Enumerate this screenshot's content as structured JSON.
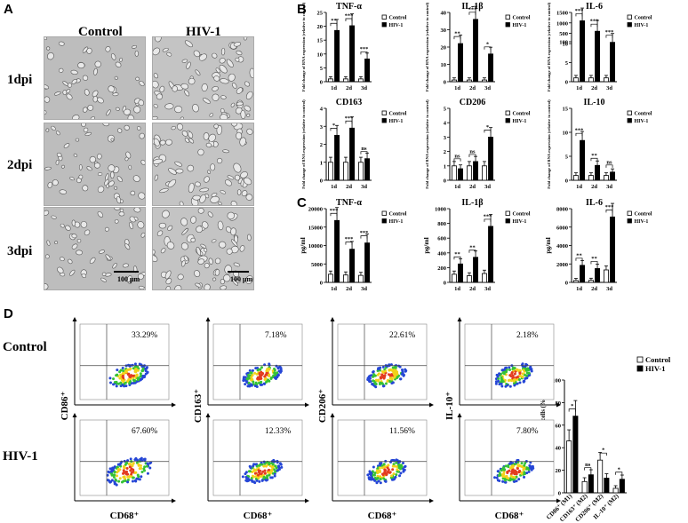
{
  "panel_labels": {
    "a": "A",
    "b": "B",
    "c": "C",
    "d": "D"
  },
  "panel_a": {
    "col_headers": [
      "Control",
      "HIV-1"
    ],
    "row_labels": [
      "1dpi",
      "2dpi",
      "3dpi"
    ],
    "scale_label": "100 μm"
  },
  "legend": {
    "control": "Control",
    "hiv": "HIV-1"
  },
  "panel_b_ylabel": "Fold change of RNA expression (relative to control)",
  "panel_c_ylabel": "pg/ml",
  "chart_data": [
    {
      "type": "bar",
      "title": "TNF-α",
      "panel": "B",
      "categories": [
        "1d",
        "2d",
        "3d"
      ],
      "ylabel": "Fold change of RNA expression (relative to control)",
      "ylim": [
        0,
        25
      ],
      "yticks": [
        0,
        5,
        10,
        15,
        20,
        25
      ],
      "series": [
        {
          "name": "Control",
          "values": [
            1,
            1,
            1
          ]
        },
        {
          "name": "HIV-1",
          "values": [
            18.5,
            20.2,
            8.2
          ]
        }
      ],
      "sig": [
        "**",
        "***",
        "***"
      ]
    },
    {
      "type": "bar",
      "title": "IL-1β",
      "panel": "B",
      "categories": [
        "1d",
        "2d",
        "3d"
      ],
      "ylabel": "Fold change of RNA expression (relative to control)",
      "ylim": [
        0,
        40
      ],
      "yticks": [
        0,
        10,
        20,
        30,
        40
      ],
      "series": [
        {
          "name": "Control",
          "values": [
            1,
            1,
            1
          ]
        },
        {
          "name": "HIV-1",
          "values": [
            22,
            36,
            16
          ]
        }
      ],
      "sig": [
        "**",
        "***",
        "*"
      ]
    },
    {
      "type": "bar",
      "title": "IL-6",
      "panel": "B",
      "categories": [
        "1d",
        "2d",
        "3d"
      ],
      "ylabel": "Fold change of RNA expression (relative to control)",
      "ylim": [
        0,
        1500
      ],
      "yticks": [
        0,
        5,
        10,
        100,
        500,
        1000,
        1500
      ],
      "series": [
        {
          "name": "Control",
          "values": [
            1,
            1,
            1
          ]
        },
        {
          "name": "HIV-1",
          "values": [
            1100,
            600,
            70
          ]
        }
      ],
      "sig": [
        "***",
        "***",
        "***"
      ]
    },
    {
      "type": "bar",
      "title": "CD163",
      "panel": "B",
      "categories": [
        "1d",
        "2d",
        "3d"
      ],
      "ylabel": "Fold change of RNA expression (relative to control)",
      "ylim": [
        0,
        4
      ],
      "yticks": [
        0,
        1,
        2,
        3,
        4
      ],
      "series": [
        {
          "name": "Control",
          "values": [
            1.0,
            1.0,
            1.0
          ]
        },
        {
          "name": "HIV-1",
          "values": [
            2.5,
            2.9,
            1.2
          ]
        }
      ],
      "sig": [
        "*",
        "***",
        "ns"
      ]
    },
    {
      "type": "bar",
      "title": "CD206",
      "panel": "B",
      "categories": [
        "1d",
        "2d",
        "3d"
      ],
      "ylabel": "Fold change of RNA expression (relative to control)",
      "ylim": [
        0,
        5
      ],
      "yticks": [
        0,
        1,
        2,
        3,
        4,
        5
      ],
      "series": [
        {
          "name": "Control",
          "values": [
            1.0,
            1.0,
            1.0
          ]
        },
        {
          "name": "HIV-1",
          "values": [
            0.8,
            1.3,
            3.0
          ]
        }
      ],
      "sig": [
        "ns",
        "ns",
        "*"
      ]
    },
    {
      "type": "bar",
      "title": "IL-10",
      "panel": "B",
      "categories": [
        "1d",
        "2d",
        "3d"
      ],
      "ylabel": "Fold change of RNA expression (relative to control)",
      "ylim": [
        0,
        15
      ],
      "yticks": [
        0,
        5,
        10,
        15
      ],
      "series": [
        {
          "name": "Control",
          "values": [
            1.0,
            1.0,
            1.0
          ]
        },
        {
          "name": "HIV-1",
          "values": [
            8.3,
            3.1,
            1.7
          ]
        }
      ],
      "sig": [
        "***",
        "**",
        "ns"
      ]
    },
    {
      "type": "bar",
      "title": "TNF-α",
      "panel": "C",
      "categories": [
        "1d",
        "2d",
        "3d"
      ],
      "ylabel": "pg/ml",
      "ylim": [
        0,
        20000
      ],
      "yticks": [
        0,
        5000,
        10000,
        15000,
        20000
      ],
      "series": [
        {
          "name": "Control",
          "values": [
            2200,
            2000,
            1900
          ]
        },
        {
          "name": "HIV-1",
          "values": [
            16800,
            9000,
            10700
          ]
        }
      ],
      "sig": [
        "***",
        "***",
        "***"
      ]
    },
    {
      "type": "bar",
      "title": "IL-1β",
      "panel": "C",
      "categories": [
        "1d",
        "2d",
        "3d"
      ],
      "ylabel": "pg/ml",
      "ylim": [
        0,
        1000
      ],
      "yticks": [
        0,
        200,
        400,
        600,
        800,
        1000
      ],
      "series": [
        {
          "name": "Control",
          "values": [
            110,
            90,
            120
          ]
        },
        {
          "name": "HIV-1",
          "values": [
            250,
            340,
            760
          ]
        }
      ],
      "sig": [
        "**",
        "**",
        "***"
      ]
    },
    {
      "type": "bar",
      "title": "IL-6",
      "panel": "C",
      "categories": [
        "1d",
        "2d",
        "3d"
      ],
      "ylabel": "pg/ml",
      "ylim": [
        0,
        8000
      ],
      "yticks": [
        0,
        2000,
        4000,
        6000,
        8000
      ],
      "series": [
        {
          "name": "Control",
          "values": [
            200,
            220,
            1350
          ]
        },
        {
          "name": "HIV-1",
          "values": [
            1850,
            1500,
            7100
          ]
        }
      ],
      "sig": [
        "**",
        "**",
        "***"
      ]
    },
    {
      "type": "bar",
      "title": "",
      "panel": "D",
      "categories": [
        "CD86⁺ (M1)",
        "CD163⁺ (M2)",
        "CD206⁺ (M2)",
        "IL-10⁺ (M2)"
      ],
      "ylabel": "M1 & M2 in CD68⁺ cells (%)",
      "ylim": [
        0,
        100
      ],
      "yticks": [
        0,
        20,
        40,
        60,
        80,
        100
      ],
      "series": [
        {
          "name": "Control",
          "values": [
            46,
            10,
            29,
            4
          ]
        },
        {
          "name": "HIV-1",
          "values": [
            68,
            16,
            13,
            12
          ]
        }
      ],
      "sig": [
        "*",
        "ns",
        "*",
        "*"
      ]
    }
  ],
  "panel_d": {
    "row_labels": [
      "Control",
      "HIV-1"
    ],
    "x_label": "CD68⁺",
    "y_labels": [
      "CD86⁺",
      "CD163⁺",
      "CD206⁺",
      "IL-10⁺"
    ],
    "control_pcts": [
      "33.29%",
      "7.18%",
      "22.61%",
      "2.18%"
    ],
    "hiv_pcts": [
      "67.60%",
      "12.33%",
      "11.56%",
      "7.80%"
    ]
  }
}
